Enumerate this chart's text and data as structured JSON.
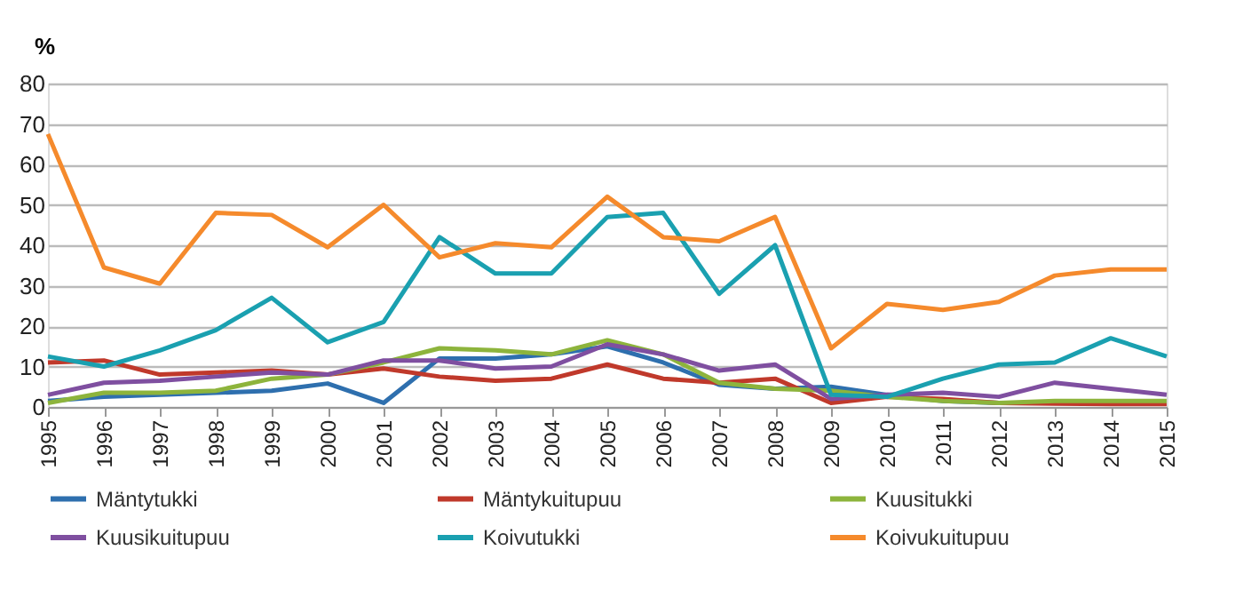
{
  "chart_data": {
    "type": "line",
    "ylabel": "%",
    "categories": [
      "1995",
      "1996",
      "1997",
      "1998",
      "1999",
      "2000",
      "2001",
      "2002",
      "2003",
      "2004",
      "2005",
      "2006",
      "2007",
      "2008",
      "2009",
      "2010",
      "2011",
      "2012",
      "2013",
      "2014",
      "2015"
    ],
    "ylim": [
      0,
      80
    ],
    "yticks": [
      0,
      10,
      20,
      30,
      40,
      50,
      60,
      70,
      80
    ],
    "grid": "y",
    "legend": "bottom",
    "marker": "none",
    "line_style": "solid",
    "series": [
      {
        "name": "Mäntytukki",
        "color": "#2e6fae",
        "values": [
          1.5,
          2.5,
          3,
          3.5,
          4,
          5.8,
          1,
          12,
          12,
          13,
          15,
          11,
          5.5,
          4.5,
          5,
          3,
          1.5,
          1,
          null,
          null,
          null
        ]
      },
      {
        "name": "Mäntykuitupuu",
        "color": "#c0392b",
        "values": [
          11,
          11.5,
          8,
          8.5,
          9,
          8,
          9.5,
          7.5,
          6.5,
          7,
          10.5,
          7,
          6,
          7,
          1,
          2.5,
          2,
          1,
          0.8,
          0.7,
          0.7
        ]
      },
      {
        "name": "Kuusitukki",
        "color": "#8db43c",
        "values": [
          1,
          3.5,
          3.5,
          4,
          7,
          8,
          11,
          14.5,
          14,
          13,
          16.5,
          13,
          6,
          4.5,
          4,
          2.5,
          1.5,
          1,
          1.5,
          1.5,
          1.5
        ]
      },
      {
        "name": "Kuusikuitupuu",
        "color": "#7f4fa0",
        "values": [
          3,
          6,
          6.5,
          7.5,
          8.5,
          8,
          11.5,
          11.5,
          9.5,
          10,
          15.5,
          13,
          9,
          10.5,
          2,
          3,
          3.5,
          2.5,
          6,
          4.5,
          3
        ]
      },
      {
        "name": "Koivutukki",
        "color": "#1aa0b0",
        "values": [
          12.5,
          10,
          14,
          19,
          27,
          16,
          21,
          42,
          33,
          33,
          47,
          48,
          28,
          40,
          3,
          2.5,
          7,
          10.5,
          11,
          17,
          12.5
        ]
      },
      {
        "name": "Koivukuitupuu",
        "color": "#f58a2c",
        "values": [
          67.5,
          34.5,
          30.5,
          48,
          47.5,
          39.5,
          50,
          37,
          40.5,
          39.5,
          52,
          42,
          41,
          47,
          14.5,
          25.5,
          24,
          26,
          32.5,
          34,
          34
        ]
      }
    ]
  }
}
